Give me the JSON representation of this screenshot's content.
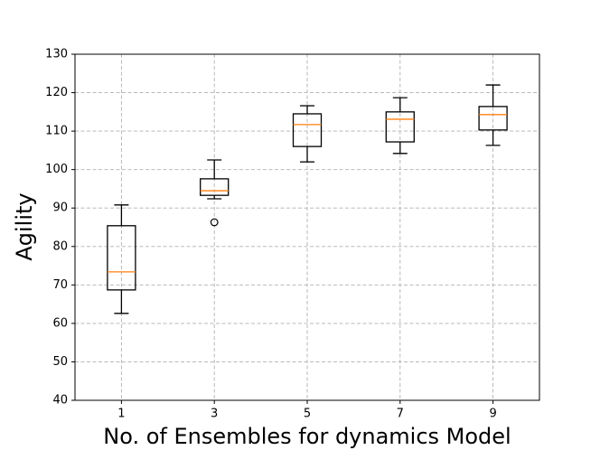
{
  "chart_data": {
    "type": "box",
    "xlabel": "No. of Ensembles for dynamics Model",
    "ylabel": "Agility",
    "categories": [
      "1",
      "3",
      "5",
      "7",
      "9"
    ],
    "boxes": [
      {
        "min": 62.6,
        "q1": 68.7,
        "median": 73.4,
        "q3": 85.4,
        "max": 90.8
      },
      {
        "min": 92.4,
        "q1": 93.3,
        "median": 94.5,
        "q3": 97.6,
        "max": 102.5,
        "outliers": [
          86.3
        ]
      },
      {
        "min": 102.0,
        "q1": 106.0,
        "median": 111.7,
        "q3": 114.5,
        "max": 116.6
      },
      {
        "min": 104.2,
        "q1": 107.2,
        "median": 113.1,
        "q3": 115.0,
        "max": 118.7
      },
      {
        "min": 106.3,
        "q1": 110.3,
        "median": 114.3,
        "q3": 116.4,
        "max": 122.0
      }
    ],
    "box_color": "#000000",
    "median_color": "#ff7f0e",
    "ylim": [
      40,
      130
    ],
    "yticks": [
      40,
      50,
      60,
      70,
      80,
      90,
      100,
      110,
      120,
      130
    ],
    "grid": true
  }
}
